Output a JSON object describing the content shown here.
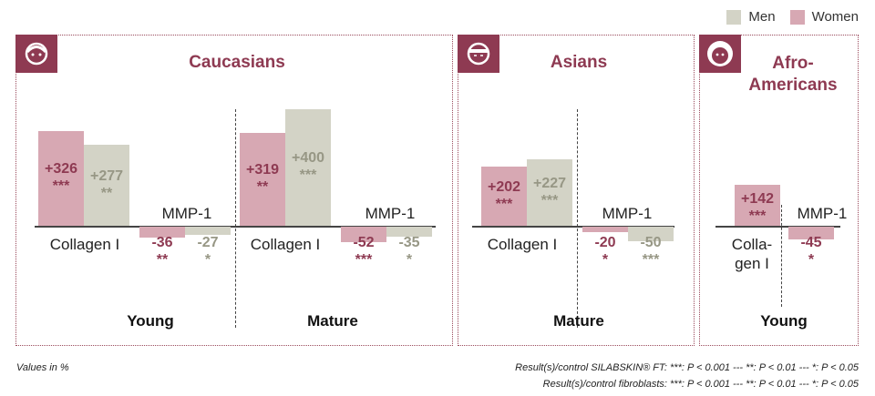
{
  "legend": {
    "men": "Men",
    "women": "Women"
  },
  "colors": {
    "men": "#d3d3c6",
    "women": "#d7a8b3",
    "men_label": "#979785",
    "women_label": "#8e3a52",
    "accent": "#8e3a52"
  },
  "panels": [
    {
      "title": "Caucasians",
      "icon": "caucasian-face-icon"
    },
    {
      "title": "Asians",
      "icon": "asian-face-icon"
    },
    {
      "title": "Afro-Americans",
      "icon": "afro-american-face-icon"
    }
  ],
  "chart_data": {
    "type": "bar",
    "groups": [
      {
        "panel": "Caucasians",
        "group": "Young",
        "category": "Collagen I",
        "women": 326,
        "women_label": "+326",
        "women_sig": "***",
        "men": 277,
        "men_label": "+277",
        "men_sig": "**"
      },
      {
        "panel": "Caucasians",
        "group": "Young",
        "category": "MMP-1",
        "women": -36,
        "women_label": "-36",
        "women_sig": "**",
        "men": -27,
        "men_label": "-27",
        "men_sig": "*"
      },
      {
        "panel": "Caucasians",
        "group": "Mature",
        "category": "Collagen I",
        "women": 319,
        "women_label": "+319",
        "women_sig": "**",
        "men": 400,
        "men_label": "+400",
        "men_sig": "***"
      },
      {
        "panel": "Caucasians",
        "group": "Mature",
        "category": "MMP-1",
        "women": -52,
        "women_label": "-52",
        "women_sig": "***",
        "men": -35,
        "men_label": "-35",
        "men_sig": "*"
      },
      {
        "panel": "Asians",
        "group": "Mature",
        "category": "Collagen I",
        "women": 202,
        "women_label": "+202",
        "women_sig": "***",
        "men": 227,
        "men_label": "+227",
        "men_sig": "***"
      },
      {
        "panel": "Asians",
        "group": "Mature",
        "category": "MMP-1",
        "women": -20,
        "women_label": "-20",
        "women_sig": "*",
        "men": -50,
        "men_label": "-50",
        "men_sig": "***"
      },
      {
        "panel": "Afro-Americans",
        "group": "Young",
        "category": "Colla-\ngen I",
        "women": 142,
        "women_label": "+142",
        "women_sig": "***"
      },
      {
        "panel": "Afro-Americans",
        "group": "Young",
        "category": "MMP-1",
        "women": -45,
        "women_label": "-45",
        "women_sig": "*"
      }
    ],
    "group_labels": [
      "Young",
      "Mature",
      "Mature",
      "Young"
    ]
  },
  "footer": {
    "units": "Values in %",
    "line1": "Result(s)/control SILABSKIN® FT: ***: P < 0.001 --- **: P < 0.01 --- *: P < 0.05",
    "line2": "Result(s)/control fibroblasts: ***: P < 0.001 --- **: P < 0.01 --- *: P < 0.05"
  }
}
